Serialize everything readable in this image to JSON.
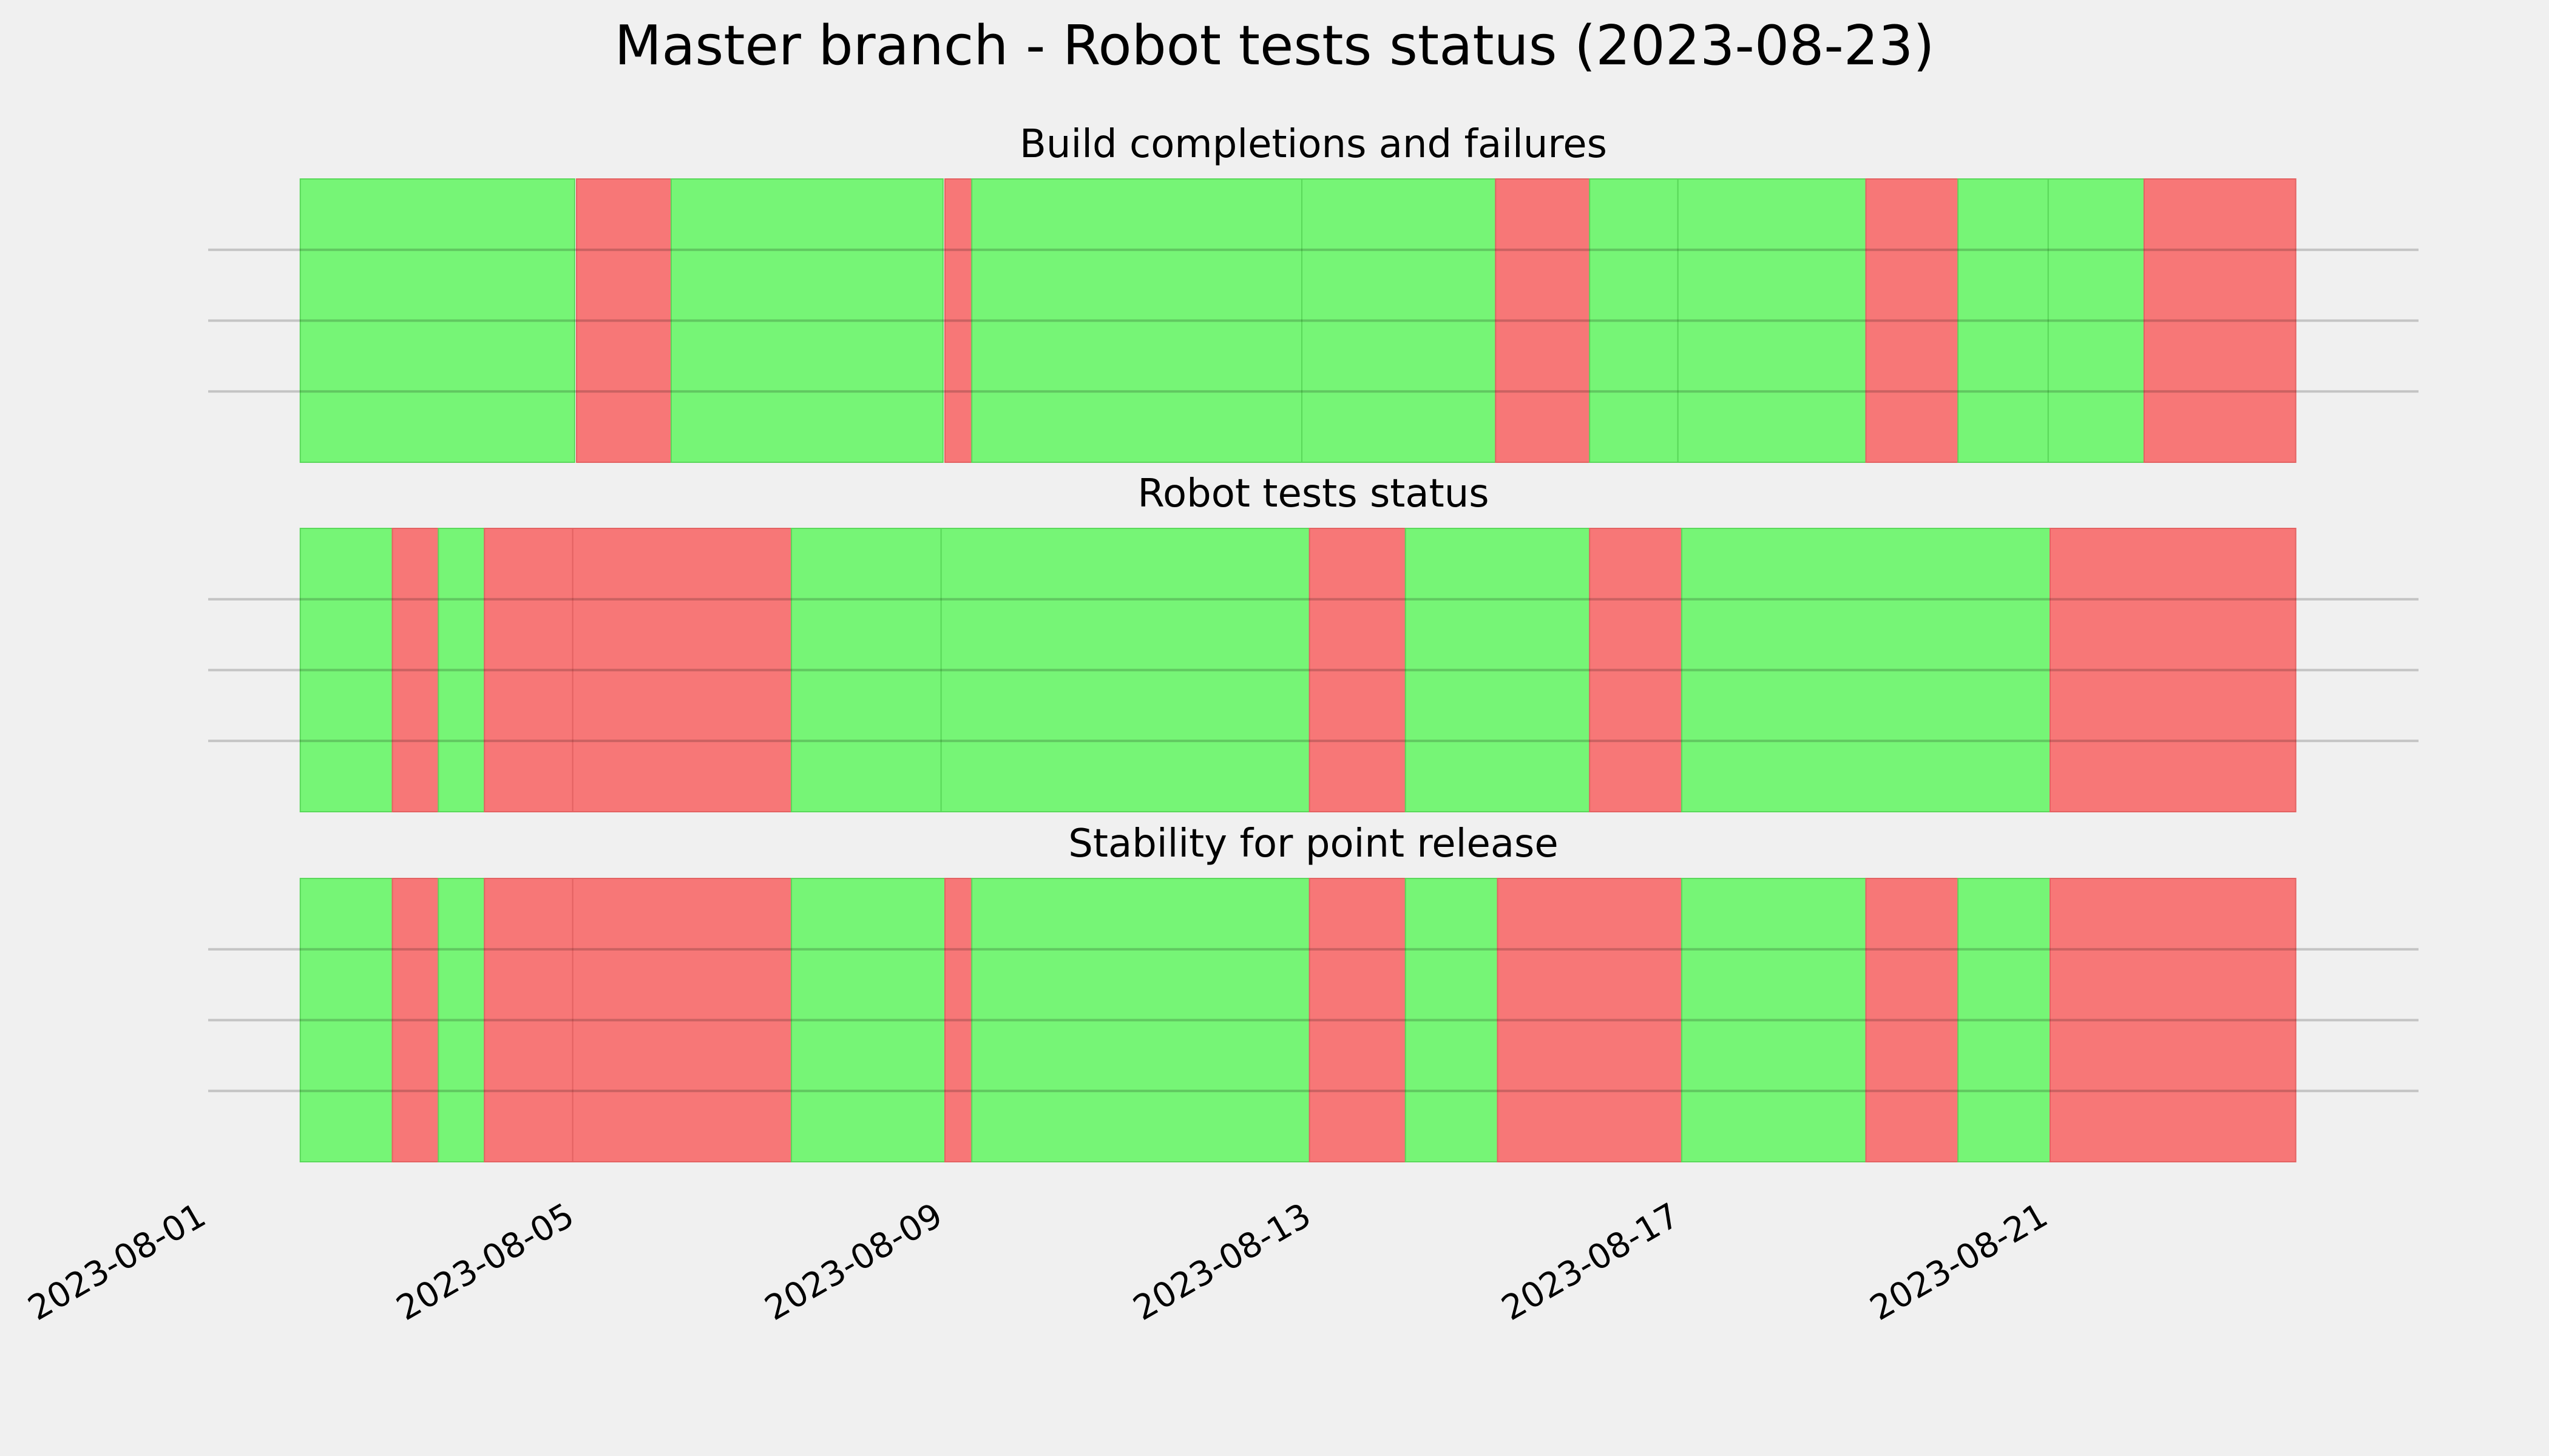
{
  "chart_data": {
    "type": "timeline",
    "title": "Master branch - Robot tests status (2023-08-23)",
    "colors": {
      "pass": "#76f576",
      "fail": "#f77777",
      "background": "#f0f0f0",
      "grid": "#cbcbcb"
    },
    "x_axis": {
      "range": [
        "2023-08-01",
        "2023-08-25"
      ],
      "ticks": [
        "2023-08-01",
        "2023-08-05",
        "2023-08-09",
        "2023-08-13",
        "2023-08-17",
        "2023-08-21"
      ]
    },
    "grid": true,
    "panels": [
      {
        "title": "Build completions and failures",
        "segments": [
          {
            "start": "2023-08-02 00:00",
            "end": "2023-08-04 23:30",
            "status": "pass"
          },
          {
            "start": "2023-08-05 00:00",
            "end": "2023-08-06 00:40",
            "status": "fail"
          },
          {
            "start": "2023-08-06 00:40",
            "end": "2023-08-08 23:30",
            "status": "pass"
          },
          {
            "start": "2023-08-09 00:00",
            "end": "2023-08-09 07:00",
            "status": "fail"
          },
          {
            "start": "2023-08-09 07:00",
            "end": "2023-08-12 21:00",
            "status": "pass"
          },
          {
            "start": "2023-08-12 21:00",
            "end": "2023-08-14 23:30",
            "status": "pass"
          },
          {
            "start": "2023-08-14 23:30",
            "end": "2023-08-16 00:00",
            "status": "fail"
          },
          {
            "start": "2023-08-16 00:00",
            "end": "2023-08-16 23:00",
            "status": "pass"
          },
          {
            "start": "2023-08-16 23:00",
            "end": "2023-08-19 00:00",
            "status": "pass"
          },
          {
            "start": "2023-08-19 00:00",
            "end": "2023-08-20 00:00",
            "status": "fail"
          },
          {
            "start": "2023-08-20 00:00",
            "end": "2023-08-20 23:30",
            "status": "pass"
          },
          {
            "start": "2023-08-20 23:30",
            "end": "2023-08-22 00:30",
            "status": "pass"
          },
          {
            "start": "2023-08-22 00:30",
            "end": "2023-08-23 16:00",
            "status": "fail"
          }
        ]
      },
      {
        "title": "Robot tests status",
        "segments": [
          {
            "start": "2023-08-02 00:00",
            "end": "2023-08-03 00:00",
            "status": "pass"
          },
          {
            "start": "2023-08-03 00:00",
            "end": "2023-08-03 12:00",
            "status": "fail"
          },
          {
            "start": "2023-08-03 12:00",
            "end": "2023-08-04 00:00",
            "status": "pass"
          },
          {
            "start": "2023-08-04 00:00",
            "end": "2023-08-04 23:00",
            "status": "fail"
          },
          {
            "start": "2023-08-04 23:00",
            "end": "2023-08-07 08:00",
            "status": "fail"
          },
          {
            "start": "2023-08-07 08:00",
            "end": "2023-08-08 23:00",
            "status": "pass"
          },
          {
            "start": "2023-08-08 23:00",
            "end": "2023-08-12 23:00",
            "status": "pass"
          },
          {
            "start": "2023-08-12 23:00",
            "end": "2023-08-14 00:00",
            "status": "fail"
          },
          {
            "start": "2023-08-14 00:00",
            "end": "2023-08-16 00:00",
            "status": "pass"
          },
          {
            "start": "2023-08-16 00:00",
            "end": "2023-08-17 00:00",
            "status": "fail"
          },
          {
            "start": "2023-08-17 00:00",
            "end": "2023-08-21 00:00",
            "status": "pass"
          },
          {
            "start": "2023-08-21 00:00",
            "end": "2023-08-23 16:00",
            "status": "fail"
          }
        ]
      },
      {
        "title": "Stability for point release",
        "segments": [
          {
            "start": "2023-08-02 00:00",
            "end": "2023-08-03 00:00",
            "status": "pass"
          },
          {
            "start": "2023-08-03 00:00",
            "end": "2023-08-03 12:00",
            "status": "fail"
          },
          {
            "start": "2023-08-03 12:00",
            "end": "2023-08-04 00:00",
            "status": "pass"
          },
          {
            "start": "2023-08-04 00:00",
            "end": "2023-08-04 23:00",
            "status": "fail"
          },
          {
            "start": "2023-08-04 23:00",
            "end": "2023-08-07 08:00",
            "status": "fail"
          },
          {
            "start": "2023-08-07 08:00",
            "end": "2023-08-09 00:00",
            "status": "pass"
          },
          {
            "start": "2023-08-09 00:00",
            "end": "2023-08-09 07:00",
            "status": "fail"
          },
          {
            "start": "2023-08-09 07:00",
            "end": "2023-08-12 23:00",
            "status": "pass"
          },
          {
            "start": "2023-08-12 23:00",
            "end": "2023-08-14 00:00",
            "status": "fail"
          },
          {
            "start": "2023-08-14 00:00",
            "end": "2023-08-15 00:00",
            "status": "pass"
          },
          {
            "start": "2023-08-15 00:00",
            "end": "2023-08-17 00:00",
            "status": "fail"
          },
          {
            "start": "2023-08-17 00:00",
            "end": "2023-08-19 00:00",
            "status": "pass"
          },
          {
            "start": "2023-08-19 00:00",
            "end": "2023-08-20 00:00",
            "status": "fail"
          },
          {
            "start": "2023-08-20 00:00",
            "end": "2023-08-21 00:00",
            "status": "pass"
          },
          {
            "start": "2023-08-21 00:00",
            "end": "2023-08-23 16:00",
            "status": "fail"
          }
        ]
      }
    ]
  }
}
